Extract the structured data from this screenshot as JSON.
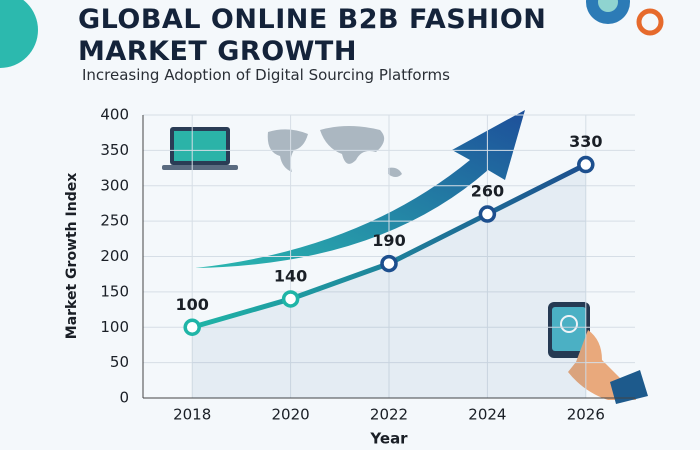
{
  "chart_data": {
    "type": "line",
    "title": "GLOBAL ONLINE B2B FASHION MARKET GROWTH",
    "subtitle": "Increasing Adoption of Digital Sourcing Platforms",
    "x_label": "Year",
    "y_label": "Market Growth Index",
    "x": [
      2018,
      2020,
      2022,
      2024,
      2026
    ],
    "values": [
      100,
      140,
      190,
      260,
      330
    ],
    "colors": [
      "#1fb5a7",
      "#1d4f8e"
    ],
    "xlim": [
      2017,
      2027
    ],
    "xticks": [
      2018,
      2020,
      2022,
      2024,
      2026
    ],
    "ylim": [
      0,
      400
    ],
    "yticks": [
      0,
      50,
      100,
      150,
      200,
      250,
      300,
      350,
      400
    ],
    "grid": true
  }
}
